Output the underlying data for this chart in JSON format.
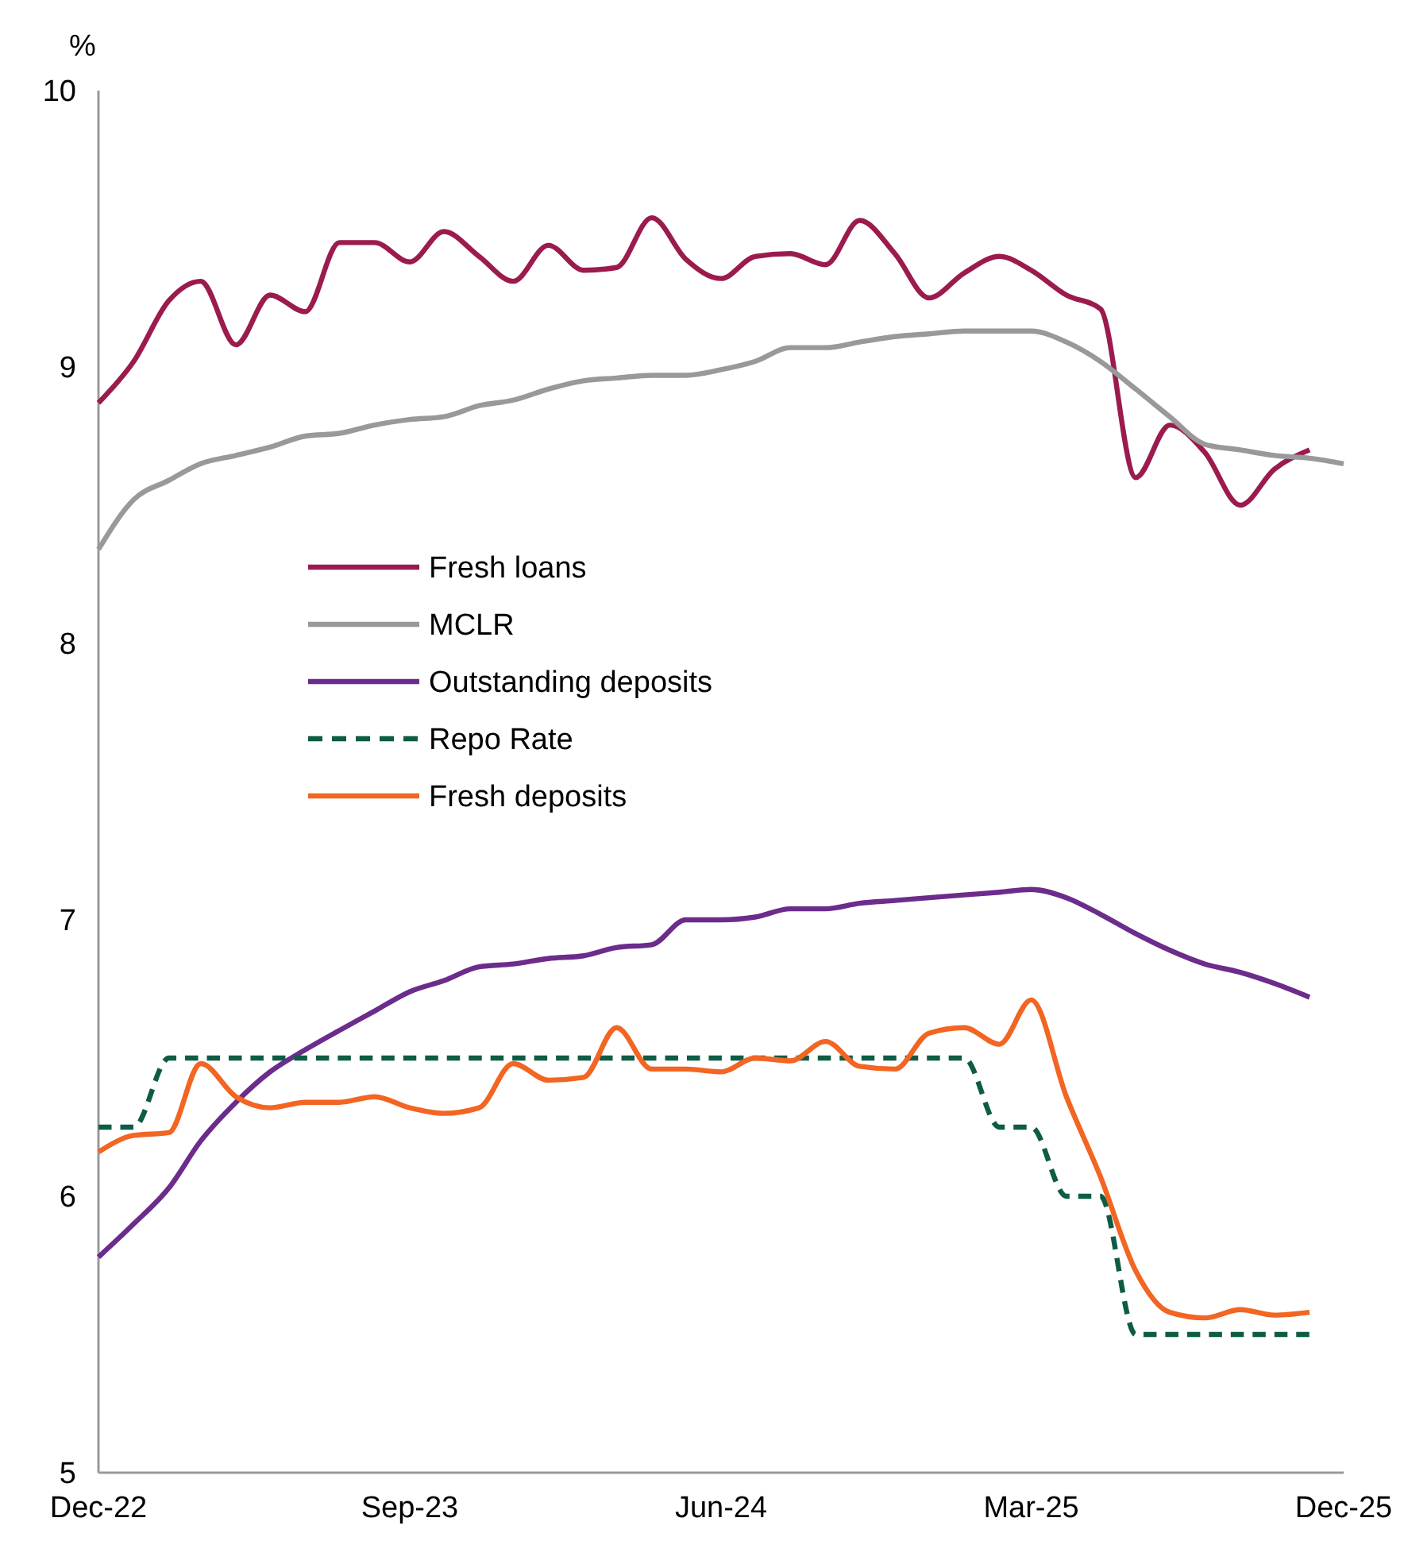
{
  "chart_data": {
    "type": "line",
    "ylabel": "%",
    "x": [
      "2022-12",
      "2023-01",
      "2023-02",
      "2023-03",
      "2023-04",
      "2023-05",
      "2023-06",
      "2023-07",
      "2023-08",
      "2023-09",
      "2023-10",
      "2023-11",
      "2023-12",
      "2024-01",
      "2024-02",
      "2024-03",
      "2024-04",
      "2024-05",
      "2024-06",
      "2024-07",
      "2024-08",
      "2024-09",
      "2024-10",
      "2024-11",
      "2024-12",
      "2025-01",
      "2025-02",
      "2025-03",
      "2025-04",
      "2025-05",
      "2025-06",
      "2025-07",
      "2025-08",
      "2025-09",
      "2025-10",
      "2025-11"
    ],
    "xlim": [
      "2022-12",
      "2025-12"
    ],
    "xticks": [
      {
        "value": "2022-12",
        "label": "Dec-22"
      },
      {
        "value": "2023-09",
        "label": "Sep-23"
      },
      {
        "value": "2024-06",
        "label": "Jun-24"
      },
      {
        "value": "2025-03",
        "label": "Mar-25"
      },
      {
        "value": "2025-12",
        "label": "Dec-25"
      }
    ],
    "ylim": [
      5,
      10
    ],
    "yticks": [
      5,
      6,
      7,
      8,
      9,
      10
    ],
    "grid": false,
    "legend": "center",
    "marker": "none",
    "line_style": "solid",
    "series": [
      {
        "name": "Fresh loans",
        "color": "#9b1b4f",
        "values": [
          8.87,
          9.02,
          9.24,
          9.31,
          9.08,
          9.26,
          9.2,
          9.45,
          9.45,
          9.38,
          9.49,
          9.4,
          9.31,
          9.44,
          9.35,
          9.36,
          9.54,
          9.39,
          9.32,
          9.4,
          9.41,
          9.37,
          9.53,
          9.41,
          9.25,
          9.34,
          9.4,
          9.35,
          9.26,
          9.21,
          8.6,
          8.79,
          8.69,
          8.5,
          8.63,
          8.7
        ]
      },
      {
        "name": "MCLR",
        "color": "#999999",
        "x": [
          "2022-12",
          "2023-01",
          "2023-02",
          "2023-03",
          "2023-04",
          "2023-05",
          "2023-06",
          "2023-07",
          "2023-08",
          "2023-09",
          "2023-10",
          "2023-11",
          "2023-12",
          "2024-01",
          "2024-02",
          "2024-03",
          "2024-04",
          "2024-05",
          "2024-06",
          "2024-07",
          "2024-08",
          "2024-09",
          "2024-10",
          "2024-11",
          "2024-12",
          "2025-01",
          "2025-02",
          "2025-03",
          "2025-04",
          "2025-05",
          "2025-06",
          "2025-07",
          "2025-08",
          "2025-09",
          "2025-10",
          "2025-11",
          "2025-12"
        ],
        "values": [
          8.34,
          8.52,
          8.59,
          8.65,
          8.68,
          8.71,
          8.75,
          8.76,
          8.79,
          8.81,
          8.82,
          8.86,
          8.88,
          8.92,
          8.95,
          8.96,
          8.97,
          8.97,
          8.99,
          9.02,
          9.07,
          9.07,
          9.09,
          9.11,
          9.12,
          9.13,
          9.13,
          9.13,
          9.09,
          9.02,
          8.92,
          8.82,
          8.72,
          8.7,
          8.68,
          8.67,
          8.65
        ]
      },
      {
        "name": "Outstanding deposits",
        "color": "#6b2c8c",
        "values": [
          5.78,
          5.9,
          6.03,
          6.2,
          6.34,
          6.45,
          6.53,
          6.6,
          6.67,
          6.74,
          6.78,
          6.83,
          6.84,
          6.86,
          6.87,
          6.9,
          6.91,
          7.0,
          7.0,
          7.01,
          7.04,
          7.04,
          7.06,
          7.07,
          7.08,
          7.09,
          7.1,
          7.11,
          7.08,
          7.02,
          6.95,
          6.89,
          6.84,
          6.81,
          6.77,
          6.72
        ]
      },
      {
        "name": "Repo Rate",
        "color": "#0e5c46",
        "line_style": "dashed",
        "values": [
          6.25,
          6.25,
          6.5,
          6.5,
          6.5,
          6.5,
          6.5,
          6.5,
          6.5,
          6.5,
          6.5,
          6.5,
          6.5,
          6.5,
          6.5,
          6.5,
          6.5,
          6.5,
          6.5,
          6.5,
          6.5,
          6.5,
          6.5,
          6.5,
          6.5,
          6.5,
          6.25,
          6.25,
          6.0,
          6.0,
          5.5,
          5.5,
          5.5,
          5.5,
          5.5,
          5.5
        ]
      },
      {
        "name": "Fresh deposits",
        "color": "#f26522",
        "values": [
          6.16,
          6.22,
          6.23,
          6.48,
          6.36,
          6.32,
          6.34,
          6.34,
          6.36,
          6.32,
          6.3,
          6.32,
          6.48,
          6.42,
          6.43,
          6.61,
          6.46,
          6.46,
          6.45,
          6.5,
          6.49,
          6.56,
          6.47,
          6.46,
          6.59,
          6.61,
          6.55,
          6.71,
          6.36,
          6.07,
          5.73,
          5.58,
          5.56,
          5.59,
          5.57,
          5.58
        ]
      }
    ]
  }
}
